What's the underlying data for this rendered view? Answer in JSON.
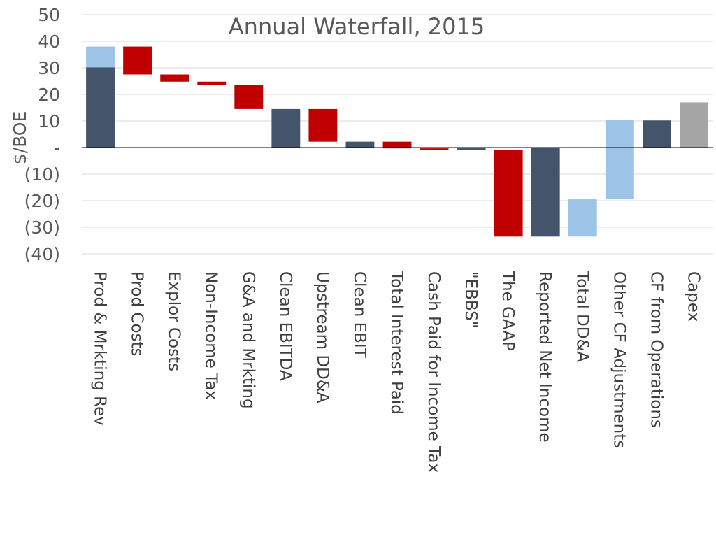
{
  "chart_data": {
    "type": "bar",
    "subtype": "waterfall",
    "title": "Annual Waterfall, 2015",
    "ylabel": "$/BOE",
    "xlabel": "",
    "ylim": [
      -40,
      50
    ],
    "yticks": [
      {
        "value": 50,
        "label": "50"
      },
      {
        "value": 40,
        "label": "40"
      },
      {
        "value": 30,
        "label": "30"
      },
      {
        "value": 20,
        "label": "20"
      },
      {
        "value": 10,
        "label": "10"
      },
      {
        "value": 0,
        "label": "-"
      },
      {
        "value": -10,
        "label": "(10)"
      },
      {
        "value": -20,
        "label": "(20)"
      },
      {
        "value": -30,
        "label": "(30)"
      },
      {
        "value": -40,
        "label": "(40)"
      }
    ],
    "grid": true,
    "colors": {
      "total": "#44546A",
      "decrease": "#C00000",
      "highlight": "#9DC3E6",
      "capex": "#A5A5A5",
      "grid": "#D9D9D9",
      "axis": "#000000"
    },
    "categories": [
      "Prod & Mrkting Rev",
      "Prod Costs",
      "Explor Costs",
      "Non-Income Tax",
      "G&A and Mrkting",
      "Clean EBITDA",
      "Upstream DD&A",
      "Clean EBIT",
      "Total Interest Paid",
      "Cash Paid for Income Tax",
      "\"EBBS\"",
      "The GAAP",
      "Reported Net Income",
      "Total DD&A",
      "Other CF Adjustments",
      "CF from Operations",
      "Capex"
    ],
    "bars": [
      {
        "category": "Prod & Mrkting Rev",
        "segments": [
          {
            "from": 0,
            "to": 30.2,
            "kind": "total"
          },
          {
            "from": 30.2,
            "to": 38.0,
            "kind": "highlight"
          }
        ]
      },
      {
        "category": "Prod Costs",
        "segments": [
          {
            "from": 38.0,
            "to": 27.5,
            "kind": "decrease"
          }
        ]
      },
      {
        "category": "Explor Costs",
        "segments": [
          {
            "from": 27.5,
            "to": 24.8,
            "kind": "decrease"
          }
        ]
      },
      {
        "category": "Non-Income Tax",
        "segments": [
          {
            "from": 24.8,
            "to": 23.5,
            "kind": "decrease"
          }
        ]
      },
      {
        "category": "G&A and Mrkting",
        "segments": [
          {
            "from": 23.5,
            "to": 14.5,
            "kind": "decrease"
          }
        ]
      },
      {
        "category": "Clean EBITDA",
        "segments": [
          {
            "from": 0,
            "to": 14.5,
            "kind": "total"
          }
        ]
      },
      {
        "category": "Upstream DD&A",
        "segments": [
          {
            "from": 14.5,
            "to": 2.2,
            "kind": "decrease"
          }
        ]
      },
      {
        "category": "Clean EBIT",
        "segments": [
          {
            "from": 0,
            "to": 2.2,
            "kind": "total"
          }
        ]
      },
      {
        "category": "Total Interest Paid",
        "segments": [
          {
            "from": 2.2,
            "to": -0.3,
            "kind": "decrease"
          }
        ]
      },
      {
        "category": "Cash Paid for Income Tax",
        "segments": [
          {
            "from": -0.3,
            "to": -1.0,
            "kind": "decrease"
          }
        ]
      },
      {
        "category": "\"EBBS\"",
        "segments": [
          {
            "from": 0,
            "to": -1.0,
            "kind": "total"
          }
        ]
      },
      {
        "category": "The GAAP",
        "segments": [
          {
            "from": -1.0,
            "to": -33.5,
            "kind": "decrease"
          }
        ]
      },
      {
        "category": "Reported Net Income",
        "segments": [
          {
            "from": 0,
            "to": -33.5,
            "kind": "total"
          }
        ]
      },
      {
        "category": "Total DD&A",
        "segments": [
          {
            "from": -33.5,
            "to": -19.5,
            "kind": "highlight"
          }
        ]
      },
      {
        "category": "Other CF Adjustments",
        "segments": [
          {
            "from": -19.5,
            "to": 10.5,
            "kind": "highlight"
          }
        ]
      },
      {
        "category": "CF from Operations",
        "segments": [
          {
            "from": 0,
            "to": 10.2,
            "kind": "total"
          }
        ]
      },
      {
        "category": "Capex",
        "segments": [
          {
            "from": 0,
            "to": 17.0,
            "kind": "capex"
          }
        ]
      }
    ]
  }
}
